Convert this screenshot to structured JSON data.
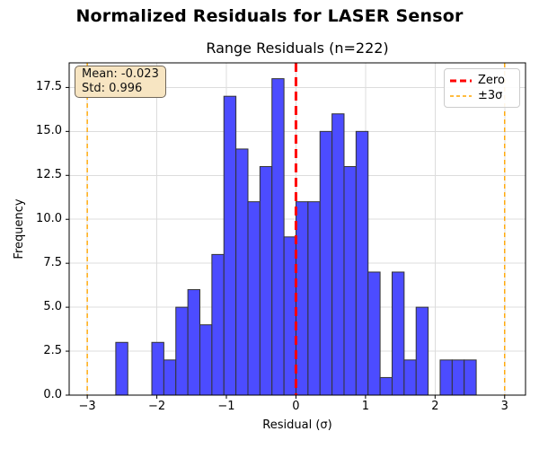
{
  "figure": {
    "title": "Normalized Residuals for LASER Sensor",
    "stats_box": {
      "line1": "Mean: -0.023",
      "line2": "Std: 0.996"
    },
    "legend": {
      "items": [
        {
          "label": "Zero",
          "color": "#ff0000",
          "style": "dashed-thick"
        },
        {
          "label": "±3σ",
          "color": "#ffa500",
          "style": "dashed-thin"
        }
      ]
    }
  },
  "chart_data": {
    "type": "bar",
    "subtype": "histogram",
    "title": "Range Residuals (n=222)",
    "n": 222,
    "mean": -0.023,
    "std": 0.996,
    "xlabel": "Residual (σ)",
    "ylabel": "Frequency",
    "bin_start_sigma": -2.59,
    "bin_width_sigma": 0.1727,
    "counts": [
      3,
      0,
      0,
      3,
      2,
      5,
      6,
      4,
      8,
      17,
      14,
      11,
      13,
      18,
      9,
      11,
      11,
      15,
      16,
      13,
      15,
      7,
      1,
      7,
      2,
      5,
      0,
      2,
      2,
      2
    ],
    "xlim": [
      -3.26,
      3.3
    ],
    "ylim": [
      0,
      18.9
    ],
    "xticks": [
      -3,
      -2,
      -1,
      0,
      1,
      2,
      3
    ],
    "xtick_labels": [
      "−3",
      "−2",
      "−1",
      "0",
      "1",
      "2",
      "3"
    ],
    "yticks": [
      0,
      2.5,
      5,
      7.5,
      10,
      12.5,
      15,
      17.5
    ],
    "ytick_labels": [
      "0.0",
      "2.5",
      "5.0",
      "7.5",
      "10.0",
      "12.5",
      "15.0",
      "17.5"
    ],
    "grid": true,
    "grid_color": "#dcdcdc",
    "bar_color": "#4c4cff",
    "bar_edge_color": "#333333",
    "zero_line": {
      "x": 0,
      "color": "#ff0000",
      "label": "Zero"
    },
    "sigma_lines": {
      "xs": [
        -3,
        3
      ],
      "color": "#ffa500",
      "label": "±3σ"
    },
    "legend_position": "upper right"
  }
}
